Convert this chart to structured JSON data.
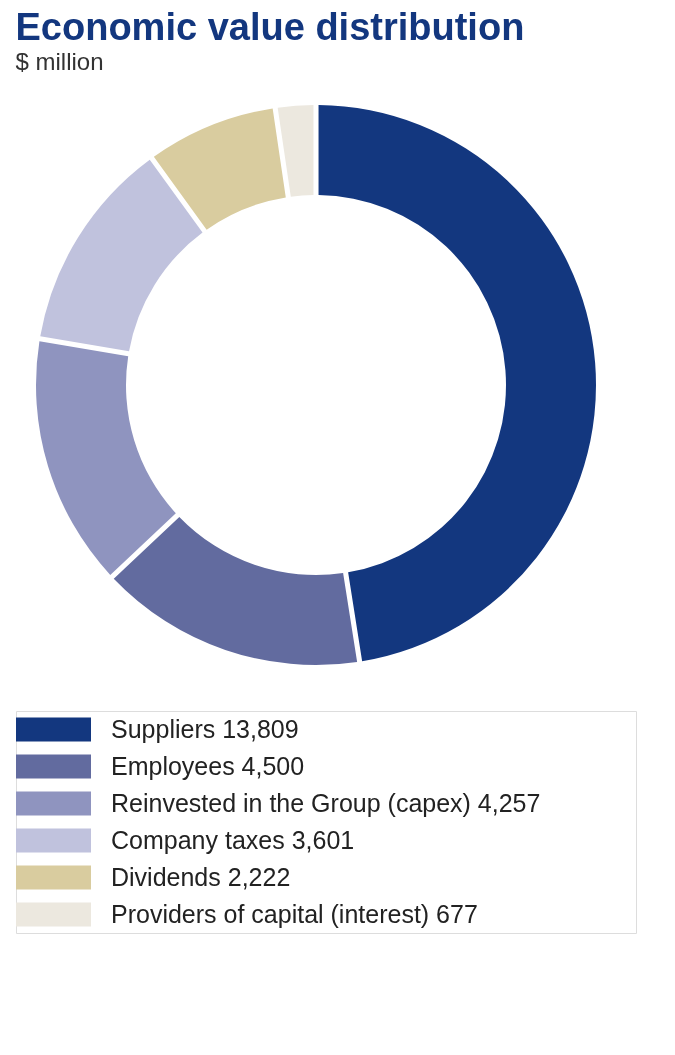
{
  "chart_data": {
    "type": "donut",
    "title": "Economic value distribution",
    "subtitle": "$ million",
    "categories": [
      "Suppliers",
      "Employees",
      "Reinvested in the Group (capex)",
      "Company taxes",
      "Dividends",
      "Providers of capital (interest)"
    ],
    "values": [
      13809,
      4500,
      4257,
      3601,
      2222,
      677
    ],
    "value_labels": [
      "13,809",
      "4,500",
      "4,257",
      "3,601",
      "2,222",
      "677"
    ],
    "colors": [
      "#13377f",
      "#626b9f",
      "#8f94bf",
      "#c0c2dd",
      "#d9cc9f",
      "#ece8df"
    ],
    "legend": "bottom"
  }
}
